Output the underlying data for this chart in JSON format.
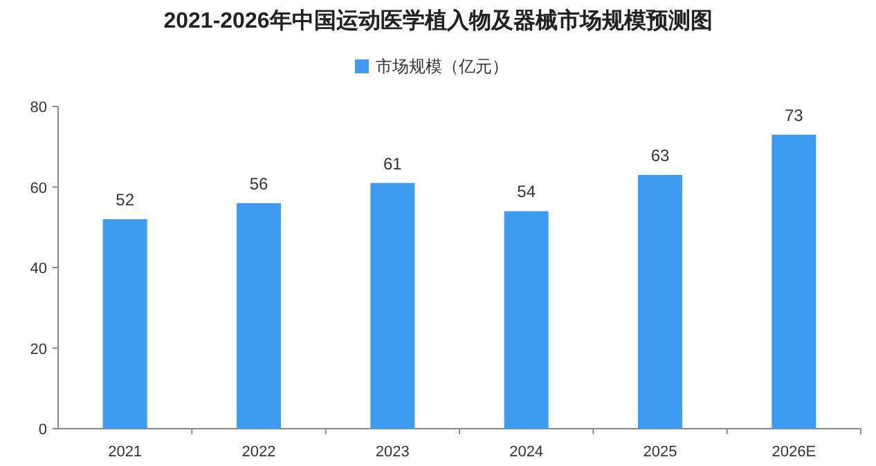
{
  "chart_data": {
    "type": "bar",
    "title": "2021-2026年中国运动医学植入物及器械市场规模预测图",
    "categories": [
      "2021",
      "2022",
      "2023",
      "2024",
      "2025",
      "2026E"
    ],
    "series": [
      {
        "name": "市场规模（亿元）",
        "color": "#3d9cf0",
        "values": [
          52,
          56,
          61,
          54,
          63,
          73
        ]
      }
    ],
    "ylim": [
      0,
      80
    ],
    "yticks": [
      0,
      20,
      40,
      60,
      80
    ],
    "grid": false,
    "legend": "top",
    "data_labels": true
  }
}
